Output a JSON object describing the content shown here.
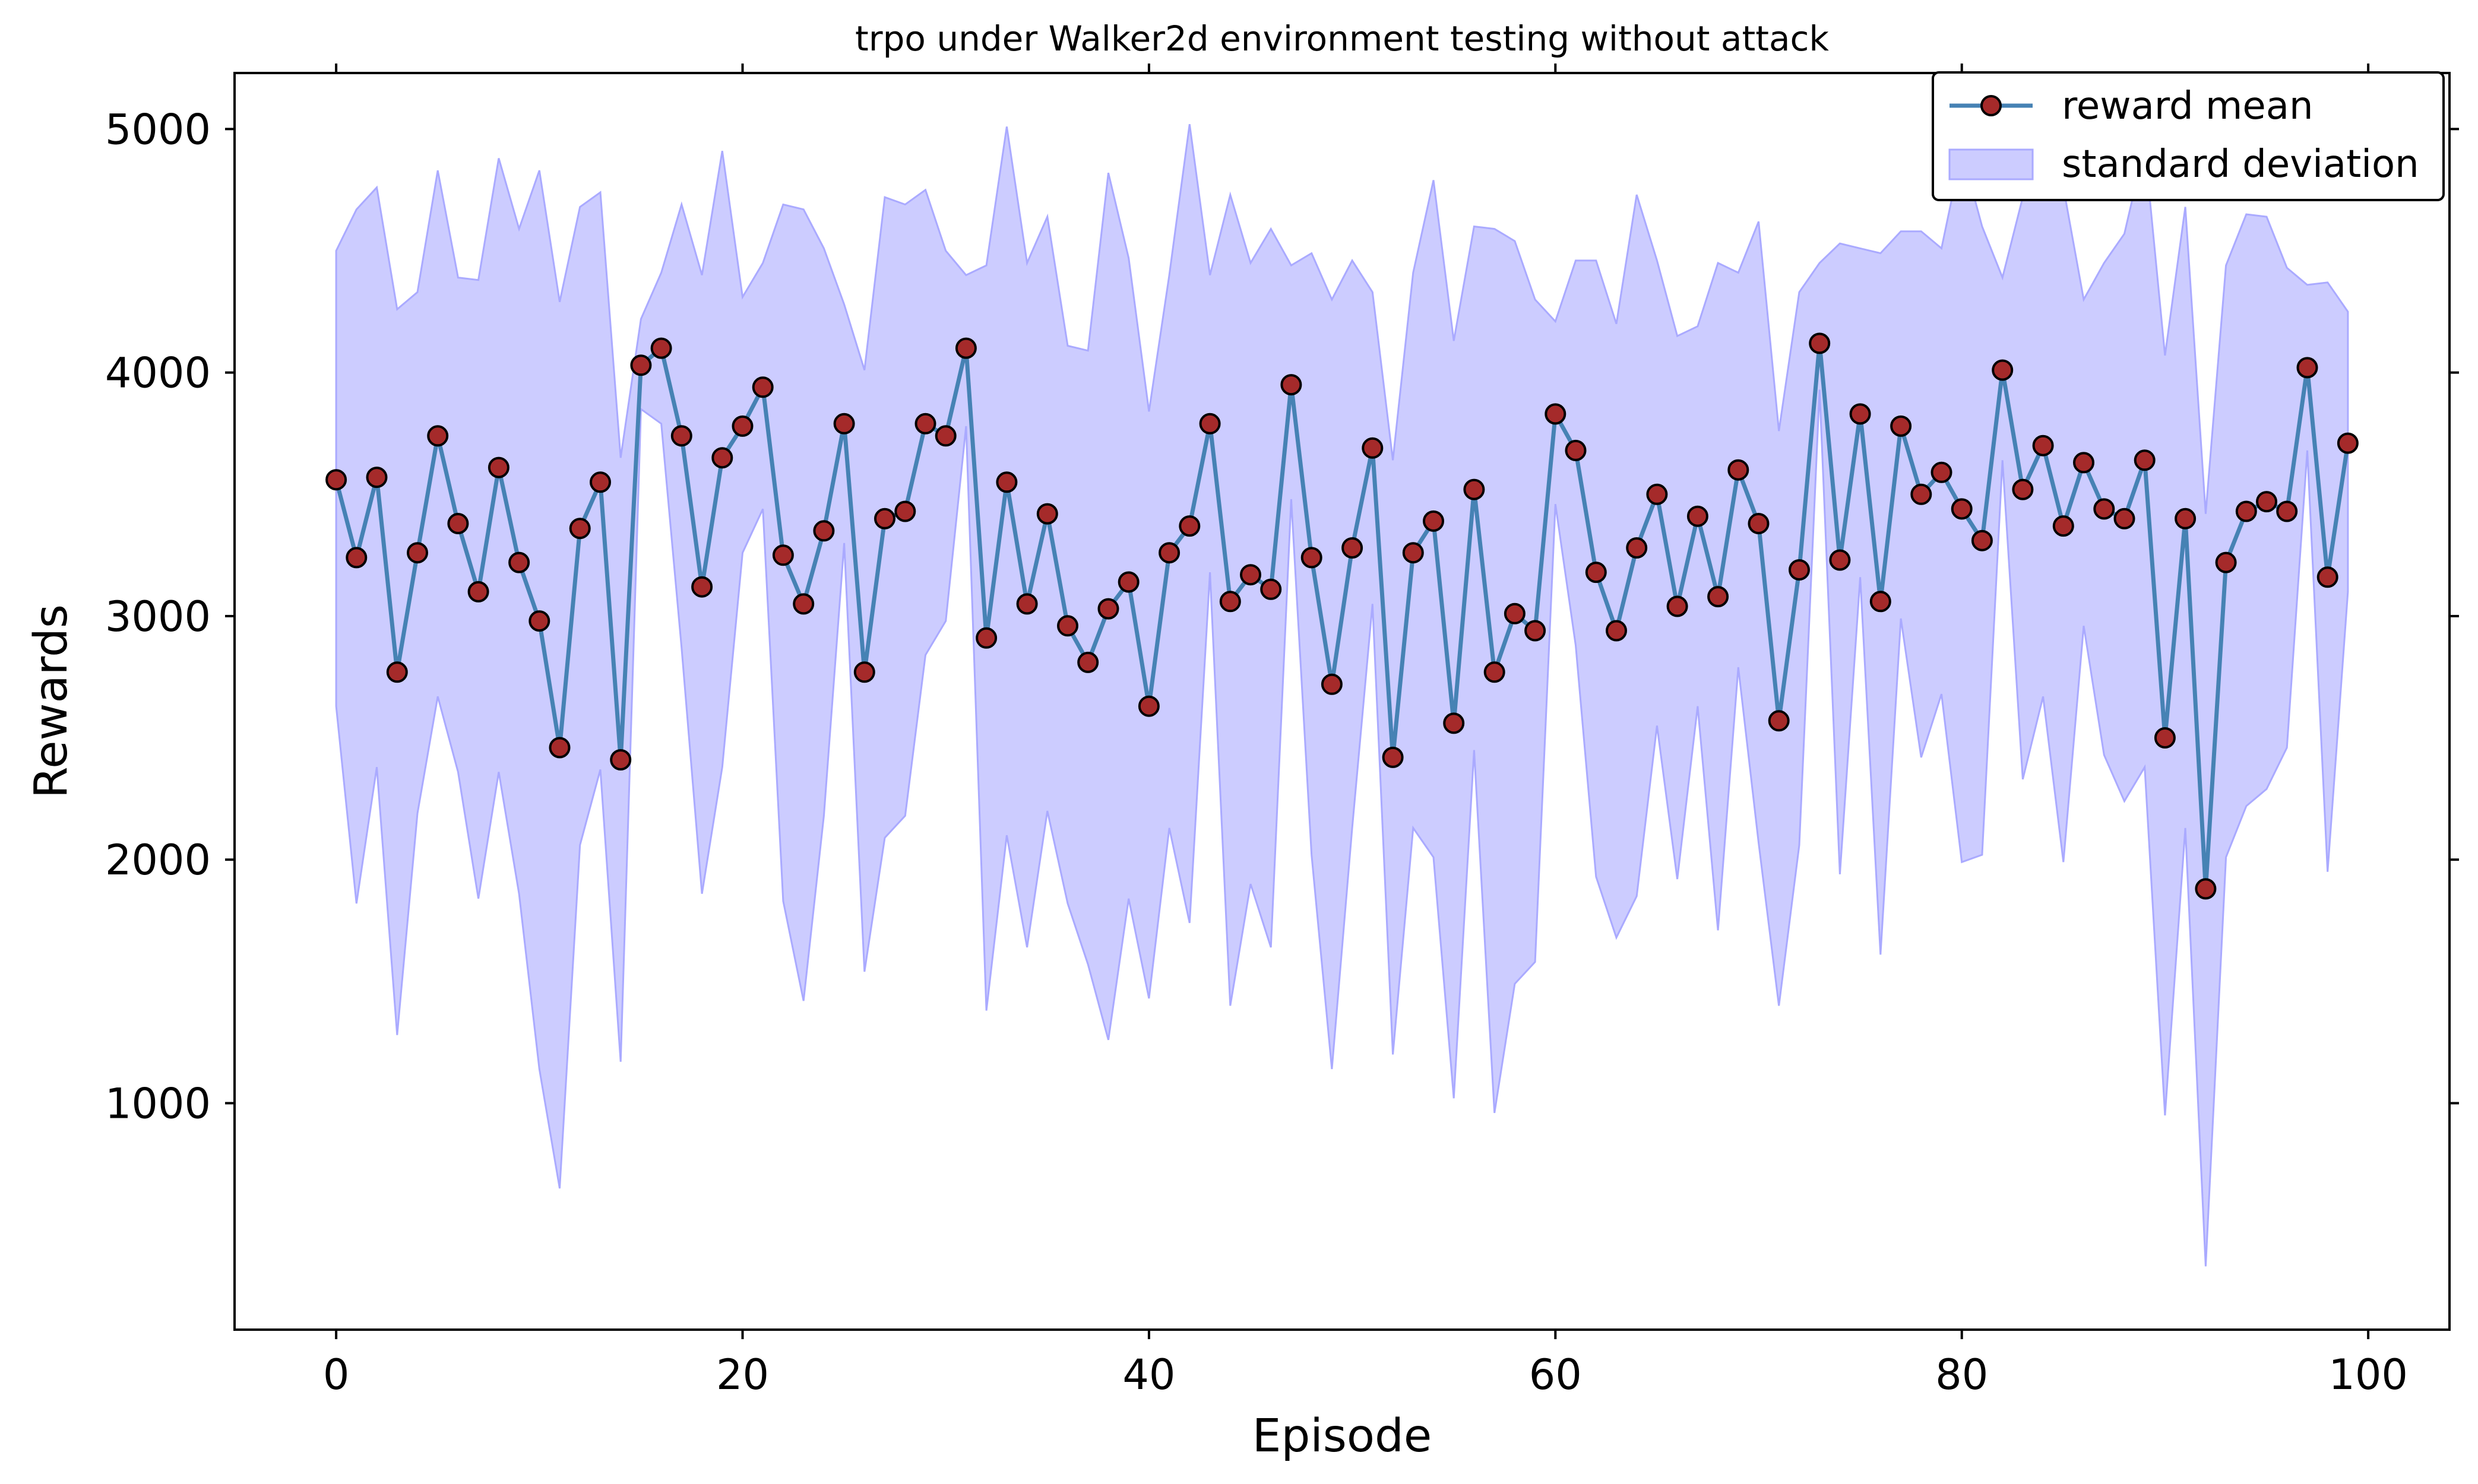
{
  "chart_data": {
    "type": "line",
    "title": "trpo under Walker2d environment testing without attack",
    "xlabel": "Episode",
    "ylabel": "Rewards",
    "xlim": [
      -5,
      104
    ],
    "ylim": [
      70,
      5230
    ],
    "xticks": [
      0,
      20,
      40,
      60,
      80,
      100
    ],
    "yticks": [
      1000,
      2000,
      3000,
      4000,
      5000
    ],
    "grid": false,
    "legend_position": "top-right",
    "colors": {
      "line": "#4682b4",
      "marker_fill": "#a52a2a",
      "marker_edge": "#000000",
      "band": "#ccccff",
      "band_edge": "#aaaaff"
    },
    "series": [
      {
        "name": "reward mean",
        "x": [
          0,
          1,
          2,
          3,
          4,
          5,
          6,
          7,
          8,
          9,
          10,
          11,
          12,
          13,
          14,
          15,
          16,
          17,
          18,
          19,
          20,
          21,
          22,
          23,
          24,
          25,
          26,
          27,
          28,
          29,
          30,
          31,
          32,
          33,
          34,
          35,
          36,
          37,
          38,
          39,
          40,
          41,
          42,
          43,
          44,
          45,
          46,
          47,
          48,
          49,
          50,
          51,
          52,
          53,
          54,
          55,
          56,
          57,
          58,
          59,
          60,
          61,
          62,
          63,
          64,
          65,
          66,
          67,
          68,
          69,
          70,
          71,
          72,
          73,
          74,
          75,
          76,
          77,
          78,
          79,
          80,
          81,
          82,
          83,
          84,
          85,
          86,
          87,
          88,
          89,
          90,
          91,
          92,
          93,
          94,
          95,
          96,
          97,
          98,
          99
        ],
        "values": [
          3560,
          3240,
          3570,
          2770,
          3260,
          3740,
          3380,
          3100,
          3610,
          3220,
          2980,
          2460,
          3360,
          3550,
          2410,
          4030,
          4100,
          3740,
          3120,
          3650,
          3780,
          3940,
          3250,
          3050,
          3350,
          3790,
          2770,
          3400,
          3430,
          3790,
          3740,
          4100,
          2910,
          3550,
          3050,
          3420,
          2960,
          2810,
          3030,
          3140,
          2630,
          3260,
          3370,
          3790,
          3060,
          3170,
          3110,
          3950,
          3240,
          2720,
          3280,
          3690,
          2420,
          3260,
          3390,
          2560,
          3520,
          2770,
          3010,
          2940,
          3830,
          3680,
          3180,
          2940,
          3280,
          3500,
          3040,
          3410,
          3080,
          3600,
          3380,
          2570,
          3190,
          4120,
          3230,
          3830,
          3060,
          3780,
          3500,
          3590,
          3440,
          3310,
          4010,
          3520,
          3700,
          3370,
          3630,
          3440,
          3400,
          3640,
          2500,
          3400,
          1880,
          3220,
          3430,
          3470,
          3430,
          4020,
          3160,
          3710
        ]
      },
      {
        "name": "standard deviation",
        "type": "area",
        "upper": [
          4500,
          4670,
          4760,
          4260,
          4330,
          4830,
          4390,
          4380,
          4880,
          4590,
          4830,
          4290,
          4680,
          4740,
          3650,
          4220,
          4410,
          4690,
          4400,
          4910,
          4310,
          4450,
          4690,
          4670,
          4510,
          4280,
          4010,
          4720,
          4690,
          4750,
          4500,
          4400,
          4440,
          5010,
          4450,
          4640,
          4110,
          4090,
          4820,
          4470,
          3840,
          4400,
          5020,
          4400,
          4730,
          4450,
          4590,
          4440,
          4490,
          4300,
          4460,
          4330,
          3640,
          4410,
          4790,
          4130,
          4600,
          4590,
          4540,
          4300,
          4210,
          4460,
          4460,
          4200,
          4730,
          4460,
          4150,
          4190,
          4450,
          4410,
          4620,
          3760,
          4330,
          4450,
          4530,
          4510,
          4490,
          4580,
          4580,
          4510,
          4910,
          4600,
          4390,
          4720,
          4750,
          4760,
          4300,
          4450,
          4570,
          4930,
          4070,
          4680,
          3420,
          4440,
          4650,
          4640,
          4430,
          4360,
          4370,
          4250
        ],
        "lower": [
          2630,
          1820,
          2380,
          1280,
          2190,
          2670,
          2360,
          1840,
          2360,
          1860,
          1140,
          650,
          2060,
          2370,
          1170,
          3850,
          3790,
          2870,
          1860,
          2380,
          3260,
          3440,
          1830,
          1420,
          2180,
          3300,
          1540,
          2090,
          2180,
          2840,
          2980,
          3780,
          1380,
          2100,
          1640,
          2200,
          1820,
          1570,
          1260,
          1840,
          1430,
          2130,
          1740,
          3180,
          1400,
          1900,
          1640,
          3480,
          2020,
          1140,
          2130,
          3050,
          1200,
          2130,
          2010,
          1020,
          2450,
          960,
          1490,
          1580,
          3460,
          2880,
          1930,
          1680,
          1850,
          2550,
          1920,
          2630,
          1710,
          2790,
          2070,
          1400,
          2060,
          3930,
          1940,
          3160,
          1610,
          2990,
          2420,
          2680,
          1990,
          2020,
          3640,
          2330,
          2670,
          1990,
          2960,
          2430,
          2240,
          2380,
          950,
          2130,
          330,
          2010,
          2220,
          2290,
          2460,
          3680,
          1950,
          3100
        ]
      }
    ]
  }
}
